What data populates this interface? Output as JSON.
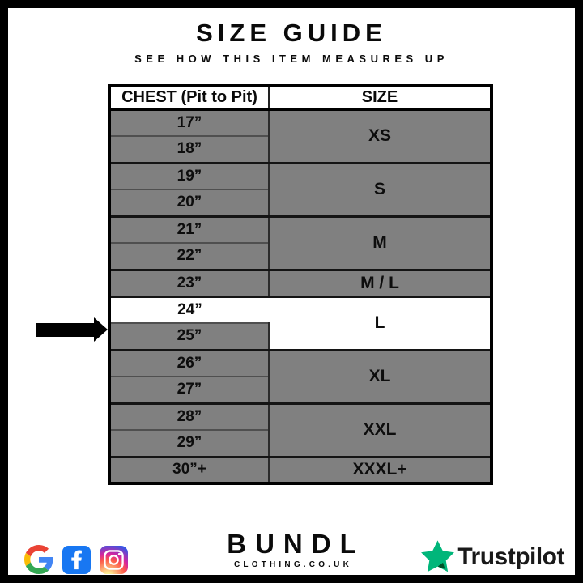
{
  "page": {
    "title": "SIZE GUIDE",
    "subtitle": "SEE HOW THIS ITEM MEASURES UP"
  },
  "table": {
    "columns": [
      "CHEST (Pit to Pit)",
      "SIZE"
    ],
    "groups": [
      {
        "size": "XS",
        "chest": [
          "17”",
          "18”"
        ],
        "highlight": false
      },
      {
        "size": "S",
        "chest": [
          "19”",
          "20”"
        ],
        "highlight": false
      },
      {
        "size": "M",
        "chest": [
          "21”",
          "22”"
        ],
        "highlight": false
      },
      {
        "size": "M / L",
        "chest": [
          "23”"
        ],
        "highlight": false
      },
      {
        "size": "L",
        "chest": [
          "24”",
          "25”"
        ],
        "highlight": true
      },
      {
        "size": "XL",
        "chest": [
          "26”",
          "27”"
        ],
        "highlight": false
      },
      {
        "size": "XXL",
        "chest": [
          "28”",
          "29”"
        ],
        "highlight": false
      },
      {
        "size": "XXXL+",
        "chest": [
          "30”+"
        ],
        "highlight": false
      }
    ],
    "selected_chest": "24”",
    "selected_size": "L"
  },
  "footer": {
    "social_icons": [
      "Google",
      "Facebook",
      "Instagram"
    ],
    "brand_name": "BUNDL",
    "brand_domain": "CLOTHING.CO.UK",
    "trustpilot_label": "Trustpilot"
  },
  "colors": {
    "row_gray": "#808080",
    "highlight_white": "#ffffff",
    "frame_black": "#000000",
    "facebook_blue": "#1877F2",
    "trustpilot_green": "#00B67A",
    "trustpilot_dark_green": "#005128"
  }
}
